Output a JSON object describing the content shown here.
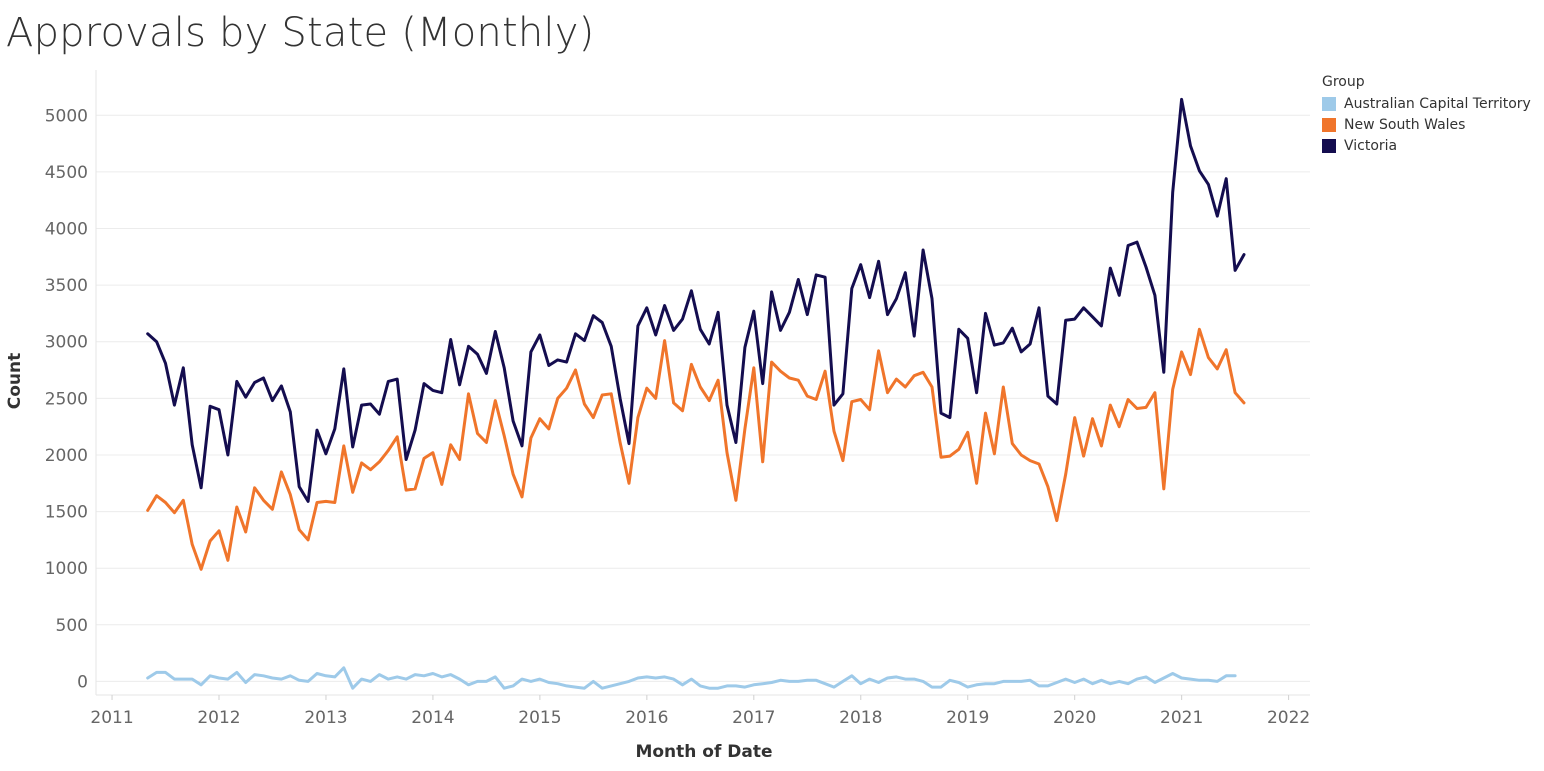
{
  "title": "Approvals by State (Monthly)",
  "legend": {
    "title": "Group",
    "items": [
      {
        "label": "Australian Capital Territory",
        "color": "#9ecae9"
      },
      {
        "label": "New South Wales",
        "color": "#f0752b"
      },
      {
        "label": "Victoria",
        "color": "#140d4f"
      }
    ]
  },
  "chart_data": {
    "type": "line",
    "xlabel": "Month of Date",
    "ylabel": "Count",
    "xlim": [
      2010.85,
      2022.2
    ],
    "ylim": [
      -120,
      5400
    ],
    "x_ticks": [
      2011,
      2012,
      2013,
      2014,
      2015,
      2016,
      2017,
      2018,
      2019,
      2020,
      2021,
      2022
    ],
    "y_ticks": [
      0,
      500,
      1000,
      1500,
      2000,
      2500,
      3000,
      3500,
      4000,
      4500,
      5000
    ],
    "grid": "horizontal",
    "legend_position": "top-right",
    "x_start": 2011.333,
    "x_step_months": 1,
    "series": [
      {
        "name": "Australian Capital Territory",
        "color": "#9ecae9",
        "values": [
          30,
          80,
          80,
          20,
          20,
          20,
          -30,
          50,
          30,
          20,
          80,
          -10,
          60,
          50,
          30,
          20,
          50,
          10,
          0,
          70,
          50,
          40,
          120,
          -60,
          20,
          0,
          60,
          20,
          40,
          20,
          60,
          50,
          70,
          40,
          60,
          20,
          -30,
          0,
          0,
          40,
          -60,
          -40,
          20,
          0,
          20,
          -10,
          -20,
          -40,
          -50,
          -60,
          0,
          -60,
          -40,
          -20,
          0,
          30,
          40,
          30,
          40,
          20,
          -30,
          20,
          -40,
          -60,
          -60,
          -40,
          -40,
          -50,
          -30,
          -20,
          -10,
          10,
          0,
          0,
          10,
          10,
          -20,
          -50,
          0,
          50,
          -20,
          20,
          -10,
          30,
          40,
          20,
          20,
          0,
          -50,
          -50,
          10,
          -10,
          -50,
          -30,
          -20,
          -20,
          0,
          0,
          0,
          10,
          -40,
          -40,
          -10,
          20,
          -10,
          20,
          -20,
          10,
          -20,
          0,
          -20,
          20,
          40,
          -10,
          30,
          70,
          30,
          20,
          10,
          10,
          0,
          50,
          50
        ]
      },
      {
        "name": "New South Wales",
        "color": "#f0752b",
        "values": [
          1510,
          1640,
          1580,
          1490,
          1600,
          1210,
          990,
          1240,
          1330,
          1070,
          1540,
          1320,
          1710,
          1600,
          1520,
          1850,
          1650,
          1340,
          1250,
          1580,
          1590,
          1580,
          2080,
          1670,
          1930,
          1870,
          1940,
          2040,
          2160,
          1690,
          1700,
          1970,
          2020,
          1740,
          2090,
          1960,
          2540,
          2190,
          2110,
          2480,
          2170,
          1830,
          1630,
          2150,
          2320,
          2230,
          2500,
          2590,
          2750,
          2450,
          2330,
          2530,
          2540,
          2110,
          1750,
          2330,
          2590,
          2500,
          3010,
          2460,
          2390,
          2800,
          2600,
          2480,
          2660,
          2020,
          1600,
          2230,
          2770,
          1940,
          2820,
          2740,
          2680,
          2660,
          2520,
          2490,
          2740,
          2210,
          1950,
          2470,
          2490,
          2400,
          2920,
          2550,
          2670,
          2600,
          2700,
          2730,
          2600,
          1980,
          1990,
          2050,
          2200,
          1750,
          2370,
          2010,
          2600,
          2100,
          2000,
          1950,
          1920,
          1720,
          1420,
          1830,
          2330,
          1990,
          2320,
          2080,
          2440,
          2250,
          2490,
          2410,
          2420,
          2550,
          1700,
          2580,
          2910,
          2710,
          3110,
          2860,
          2760,
          2930,
          2550,
          2460
        ]
      },
      {
        "name": "Victoria",
        "color": "#140d4f",
        "values": [
          3070,
          3000,
          2810,
          2440,
          2770,
          2090,
          1710,
          2430,
          2400,
          2000,
          2650,
          2510,
          2640,
          2680,
          2480,
          2610,
          2380,
          1720,
          1590,
          2220,
          2010,
          2230,
          2760,
          2070,
          2440,
          2450,
          2360,
          2650,
          2670,
          1960,
          2220,
          2630,
          2570,
          2550,
          3020,
          2620,
          2960,
          2890,
          2720,
          3090,
          2770,
          2300,
          2080,
          2910,
          3060,
          2790,
          2840,
          2820,
          3070,
          3010,
          3230,
          3170,
          2960,
          2500,
          2100,
          3140,
          3300,
          3060,
          3320,
          3100,
          3200,
          3450,
          3110,
          2980,
          3260,
          2440,
          2110,
          2950,
          3270,
          2630,
          3440,
          3100,
          3260,
          3550,
          3240,
          3590,
          3570,
          2440,
          2540,
          3470,
          3680,
          3390,
          3710,
          3240,
          3380,
          3610,
          3050,
          3810,
          3380,
          2370,
          2330,
          3110,
          3030,
          2550,
          3250,
          2970,
          2990,
          3120,
          2910,
          2980,
          3300,
          2520,
          2450,
          3190,
          3200,
          3300,
          3220,
          3140,
          3650,
          3410,
          3850,
          3880,
          3660,
          3410,
          2730,
          4320,
          5140,
          4730,
          4510,
          4390,
          4110,
          4440,
          3630,
          3770
        ]
      }
    ]
  }
}
